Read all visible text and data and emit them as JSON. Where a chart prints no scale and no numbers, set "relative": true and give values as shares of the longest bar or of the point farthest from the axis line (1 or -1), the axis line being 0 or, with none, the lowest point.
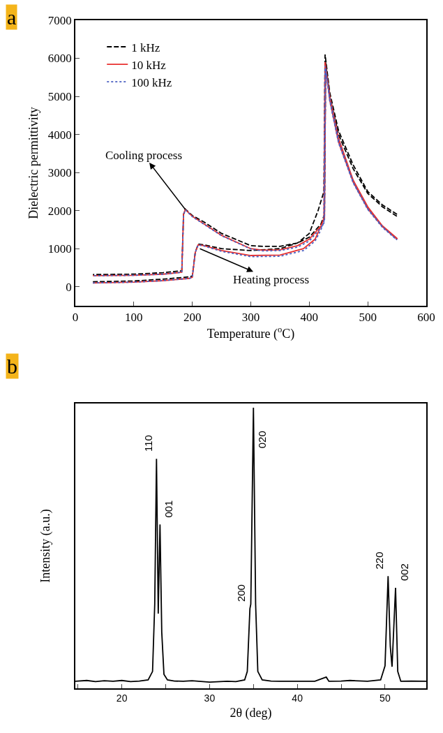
{
  "chart_data": [
    {
      "type": "line",
      "xlabel": "Temperature ($^{o}$C)",
      "ylabel": "Dielectric permittivity",
      "xlim": [
        0,
        600
      ],
      "xticks": [
        0,
        100,
        200,
        300,
        400,
        500,
        600
      ],
      "ylim": [
        -500,
        7000
      ],
      "yticks": [
        0,
        1000,
        2000,
        3000,
        4000,
        5000,
        6000,
        7000
      ],
      "legend": "top left",
      "grid": false,
      "marker": "none",
      "annotations": [
        "a",
        {
          "text": "Cooling process",
          "x": 188,
          "y": 2030
        },
        {
          "text": "Heating process",
          "x": 213,
          "y": 1000
        }
      ],
      "series": [
        {
          "name": "1 kHz",
          "color": "#000000",
          "line_style": "dashed",
          "x": [
            30,
            100,
            150,
            195,
            200,
            205,
            210,
            220,
            250,
            300,
            350,
            380,
            400,
            415,
            425,
            427,
            435,
            450,
            475,
            500,
            525,
            550,
            550,
            525,
            500,
            475,
            450,
            435,
            428,
            426,
            420,
            400,
            380,
            350,
            320,
            300,
            250,
            220,
            200,
            188,
            185,
            182,
            150,
            100,
            30
          ],
          "values": [
            130,
            150,
            200,
            260,
            280,
            900,
            1120,
            1100,
            1000,
            950,
            1000,
            1150,
            1400,
            2000,
            2500,
            6100,
            5100,
            4100,
            3200,
            2500,
            2150,
            1900,
            1850,
            2100,
            2450,
            3100,
            4000,
            5000,
            5900,
            1900,
            1650,
            1300,
            1150,
            1060,
            1060,
            1080,
            1400,
            1700,
            1870,
            2040,
            1900,
            420,
            370,
            330,
            320
          ]
        },
        {
          "name": "10 kHz",
          "color": "#e8312f",
          "line_style": "solid",
          "x": [
            30,
            100,
            150,
            195,
            200,
            205,
            210,
            220,
            250,
            300,
            350,
            390,
            410,
            420,
            425,
            427,
            435,
            450,
            475,
            500,
            525,
            550,
            550,
            525,
            500,
            475,
            450,
            435,
            428,
            426,
            420,
            400,
            380,
            350,
            320,
            300,
            250,
            220,
            200,
            188,
            185,
            182,
            150,
            100,
            30
          ],
          "values": [
            100,
            120,
            160,
            220,
            250,
            900,
            1100,
            1080,
            950,
            820,
            830,
            1000,
            1250,
            1600,
            1800,
            5900,
            5000,
            3900,
            2800,
            2100,
            1600,
            1270,
            1250,
            1580,
            2050,
            2750,
            3800,
            4900,
            5800,
            1800,
            1600,
            1250,
            1080,
            970,
            960,
            1000,
            1350,
            1650,
            1850,
            2030,
            1900,
            380,
            330,
            300,
            290
          ]
        },
        {
          "name": "100 kHz",
          "color": "#4a5fc1",
          "line_style": "dotted",
          "x": [
            30,
            100,
            150,
            195,
            200,
            205,
            210,
            220,
            250,
            300,
            350,
            390,
            410,
            420,
            425,
            427,
            435,
            450,
            475,
            500,
            525,
            550,
            550,
            525,
            500,
            475,
            450,
            435,
            428,
            426,
            420,
            400,
            380,
            350,
            320,
            300,
            250,
            220,
            200,
            188,
            185,
            182,
            150,
            100,
            30
          ],
          "values": [
            100,
            120,
            160,
            220,
            250,
            900,
            1100,
            1070,
            930,
            790,
            800,
            950,
            1200,
            1500,
            1700,
            5800,
            4950,
            3850,
            2750,
            2050,
            1580,
            1230,
            1230,
            1560,
            2030,
            2730,
            3780,
            4880,
            5750,
            1700,
            1550,
            1200,
            1040,
            950,
            940,
            990,
            1340,
            1640,
            1840,
            2020,
            1880,
            380,
            330,
            300,
            290
          ]
        }
      ]
    },
    {
      "type": "line",
      "relative": true,
      "xlabel": "2θ (deg)",
      "ylabel": "Intensity (a.u.)",
      "xlim": [
        14.7,
        54.7
      ],
      "xticks": [
        {
          "value": 15,
          "label": null
        },
        20,
        {
          "value": 25,
          "label": null
        },
        30,
        {
          "value": 35,
          "label": null
        },
        40,
        {
          "value": 45,
          "label": null
        },
        50
      ],
      "tick_labels": "x",
      "legend": false,
      "grid": false,
      "marker": "none",
      "annotations": [
        "b",
        {
          "text": "110",
          "x": 23.95,
          "y": 0.818
        },
        {
          "text": "001",
          "x": 24.35,
          "y": 0.584
        },
        {
          "text": "200",
          "x": 34.6,
          "y": 0.284
        },
        {
          "text": "020",
          "x": 35.0,
          "y": 1.0
        },
        {
          "text": "220",
          "x": 50.35,
          "y": 0.4
        },
        {
          "text": "002",
          "x": 51.2,
          "y": 0.358
        }
      ],
      "series": [
        {
          "color": "#000000",
          "line_style": "solid",
          "x": [
            14.7,
            16,
            17,
            18,
            19,
            20,
            21,
            22,
            23,
            23.5,
            23.75,
            23.95,
            24.15,
            24.35,
            24.55,
            24.8,
            25.2,
            26,
            27,
            28,
            30,
            32,
            33,
            34,
            34.3,
            34.6,
            34.7,
            35.0,
            35.25,
            35.5,
            36,
            37,
            38,
            40,
            42,
            43.3,
            43.6,
            45,
            46,
            48,
            49.5,
            50.0,
            50.35,
            50.6,
            50.8,
            51.2,
            51.45,
            51.8,
            53,
            54.7
          ],
          "values": [
            0.025,
            0.028,
            0.024,
            0.027,
            0.025,
            0.028,
            0.024,
            0.026,
            0.03,
            0.06,
            0.3,
            0.818,
            0.266,
            0.584,
            0.2,
            0.05,
            0.03,
            0.026,
            0.025,
            0.027,
            0.022,
            0.025,
            0.024,
            0.03,
            0.06,
            0.284,
            0.3,
            1.0,
            0.3,
            0.06,
            0.03,
            0.026,
            0.025,
            0.025,
            0.025,
            0.04,
            0.025,
            0.026,
            0.028,
            0.025,
            0.03,
            0.08,
            0.4,
            0.15,
            0.077,
            0.358,
            0.06,
            0.025,
            0.026,
            0.025
          ]
        }
      ]
    }
  ]
}
